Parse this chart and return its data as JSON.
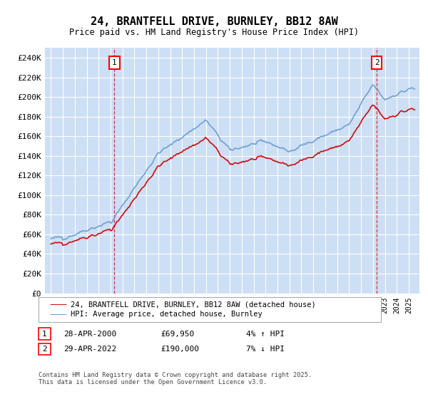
{
  "title_line1": "24, BRANTFELL DRIVE, BURNLEY, BB12 8AW",
  "title_line2": "Price paid vs. HM Land Registry's House Price Index (HPI)",
  "ylim": [
    0,
    250000
  ],
  "yticks": [
    0,
    20000,
    40000,
    60000,
    80000,
    100000,
    120000,
    140000,
    160000,
    180000,
    200000,
    220000,
    240000
  ],
  "ytick_labels": [
    "£0",
    "£20K",
    "£40K",
    "£60K",
    "£80K",
    "£100K",
    "£120K",
    "£140K",
    "£160K",
    "£180K",
    "£200K",
    "£220K",
    "£240K"
  ],
  "hpi_color": "#6699cc",
  "price_color": "#cc0000",
  "plot_bg": "#ccdff5",
  "annotation1": {
    "label": "1",
    "date": "28-APR-2000",
    "price": 69950,
    "pct": "4% ↑ HPI"
  },
  "annotation2": {
    "label": "2",
    "date": "29-APR-2022",
    "price": 190000,
    "pct": "7% ↓ HPI"
  },
  "legend_line1": "24, BRANTFELL DRIVE, BURNLEY, BB12 8AW (detached house)",
  "legend_line2": "HPI: Average price, detached house, Burnley",
  "footnote": "Contains HM Land Registry data © Crown copyright and database right 2025.\nThis data is licensed under the Open Government Licence v3.0.",
  "sale1_year": 2000.32,
  "sale1_price": 69950,
  "sale2_year": 2022.32,
  "sale2_price": 190000,
  "vline1_year": 2000.32,
  "vline2_year": 2022.32
}
